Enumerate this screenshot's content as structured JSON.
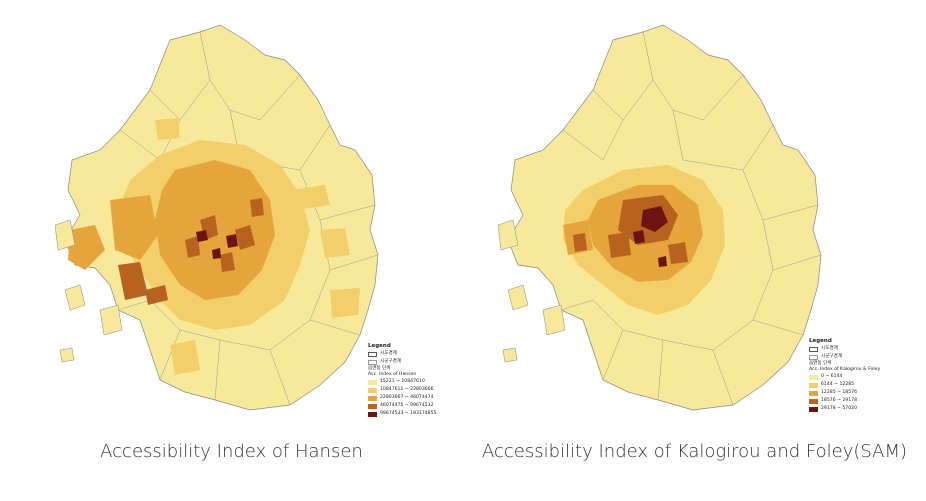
{
  "maps": [
    {
      "caption": "Accessibility Index of Hansen",
      "legend": {
        "title": "Legend",
        "boundary_items": [
          "시도경계",
          "시군구경계"
        ],
        "unit_label": "읍면동 단위",
        "field_label": "Acc. Index of Hansen",
        "classes": [
          {
            "label": "15221 ~ 10847610",
            "color": "#f7e89a"
          },
          {
            "label": "10847611 ~ 22803666",
            "color": "#f2cf6a"
          },
          {
            "label": "22803667 ~ 46074474",
            "color": "#e5a53c"
          },
          {
            "label": "46074475 ~ 99674532",
            "color": "#b8621f"
          },
          {
            "label": "99674533 ~ 183174855",
            "color": "#6e1410"
          }
        ]
      }
    },
    {
      "caption": "Accessibility Index of Kalogirou and Foley(SAM)",
      "legend": {
        "title": "Legend",
        "boundary_items": [
          "시도경계",
          "시군구경계"
        ],
        "unit_label": "읍면동 단위",
        "field_label": "Acc. Index of Kalogirou & Foley",
        "classes": [
          {
            "label": "0 ~ 6144",
            "color": "#f7e89a"
          },
          {
            "label": "6144 ~ 12285",
            "color": "#f2cf6a"
          },
          {
            "label": "12285 ~ 18576",
            "color": "#e5a53c"
          },
          {
            "label": "18576 ~ 29178",
            "color": "#b8621f"
          },
          {
            "label": "29178 ~ 57020",
            "color": "#6e1410"
          }
        ]
      }
    }
  ]
}
